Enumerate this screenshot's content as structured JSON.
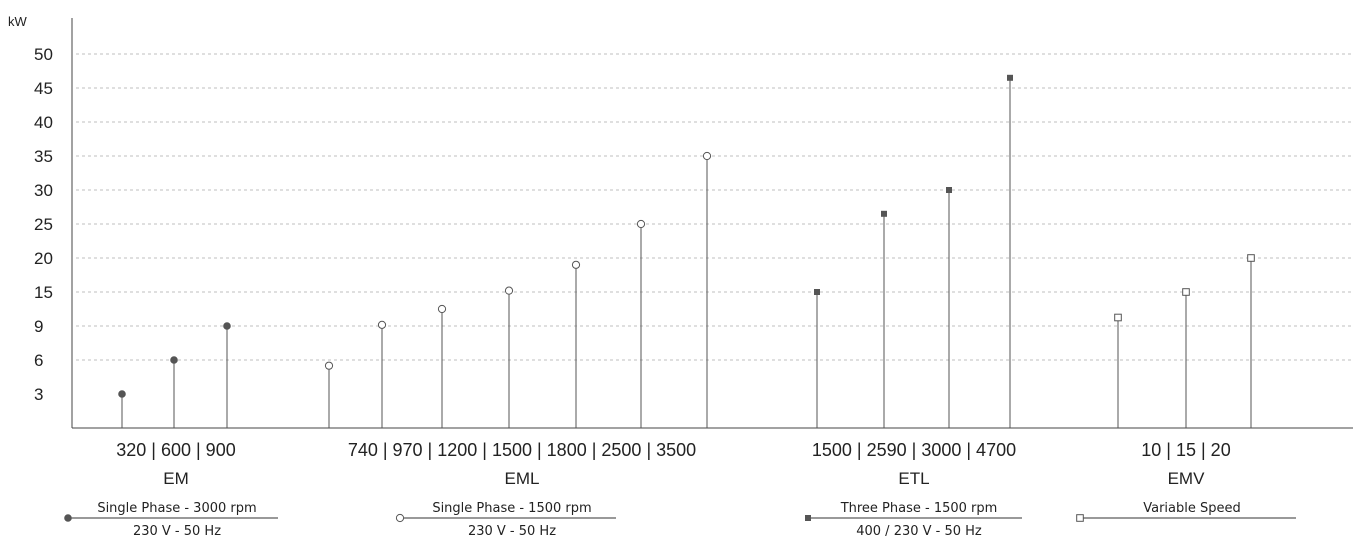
{
  "chart_data": {
    "type": "stem",
    "y_unit": "kW",
    "y_ticks": [
      "3",
      "6",
      "9",
      "15",
      "20",
      "25",
      "30",
      "35",
      "40",
      "45",
      "50"
    ],
    "groups": [
      {
        "name": "EM",
        "category_label": "320 | 600 | 900",
        "categories": [
          "320",
          "600",
          "900"
        ],
        "values": [
          3,
          6,
          9
        ],
        "marker": "filled-circle",
        "legend_line1": "Single Phase - 3000 rpm",
        "legend_line2": "230 V - 50 Hz"
      },
      {
        "name": "EML",
        "category_label": "740 | 970 | 1200 | 1500 | 1800 | 2500 | 3500",
        "categories": [
          "740",
          "970",
          "1200",
          "1500",
          "1800",
          "2500",
          "3500"
        ],
        "values": [
          5.5,
          9.2,
          12,
          15.2,
          19,
          25,
          35
        ],
        "marker": "open-circle",
        "legend_line1": "Single Phase - 1500 rpm",
        "legend_line2": "230 V - 50 Hz"
      },
      {
        "name": "ETL",
        "category_label": "1500 | 2590 | 3000 | 4700",
        "categories": [
          "1500",
          "2590",
          "3000",
          "4700"
        ],
        "values": [
          15,
          26.5,
          30,
          46.5
        ],
        "marker": "filled-square",
        "legend_line1": "Three Phase - 1500 rpm",
        "legend_line2": "400 / 230 V - 50 Hz"
      },
      {
        "name": "EMV",
        "category_label": "10   |   15   |   20",
        "categories": [
          "10",
          "15",
          "20"
        ],
        "values": [
          10.5,
          15,
          20
        ],
        "marker": "open-square",
        "legend_line1": "Variable Speed",
        "legend_line2": ""
      }
    ],
    "grid": true,
    "colors": {
      "axis": "#444444",
      "grid": "#aaaaaa",
      "stem": "#555555",
      "marker": "#555555"
    }
  }
}
